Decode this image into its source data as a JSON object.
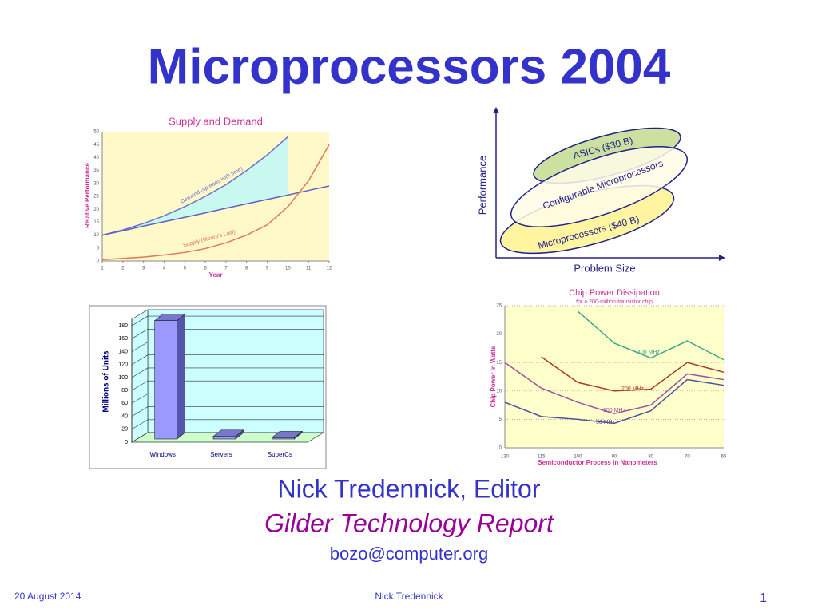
{
  "title": "Microprocessors 2004",
  "chart_data": [
    {
      "type": "line",
      "title": "Supply and Demand",
      "x_label": "Year",
      "y_label": "Relative Performance",
      "x": [
        1,
        2,
        3,
        4,
        5,
        6,
        7,
        8,
        9,
        10,
        11,
        12
      ],
      "xlim": [
        1,
        12
      ],
      "xticks": [
        1,
        2,
        3,
        4,
        5,
        6,
        7,
        8,
        9,
        10,
        11,
        12
      ],
      "ylim": [
        0,
        50
      ],
      "yticks": [
        0,
        5,
        10,
        15,
        20,
        25,
        30,
        35,
        40,
        45,
        50
      ],
      "series": [
        {
          "name": "Demand (spreads with time)",
          "color": "#7070d0",
          "values": [
            10,
            12,
            14.5,
            17.5,
            21,
            25,
            29.5,
            35,
            41,
            48,
            null,
            null
          ]
        },
        {
          "color": "#6060c8",
          "values": [
            10,
            11.7,
            13.5,
            15.2,
            16.9,
            18.6,
            20.4,
            22.1,
            23.8,
            25.5,
            27.3,
            29
          ]
        },
        {
          "name": "Supply (Moore's Law)",
          "color": "#e07858",
          "values": [
            0.5,
            1,
            1.5,
            2.3,
            3.3,
            4.8,
            7,
            10,
            14,
            21,
            31,
            45
          ]
        }
      ]
    },
    {
      "type": "bar3d",
      "y_label": "Millions of Units",
      "categories": [
        "Windows",
        "Servers",
        "SuperCs"
      ],
      "values": [
        183,
        4,
        2
      ],
      "color": "#9999ff",
      "ylim": [
        0,
        190
      ],
      "yticks": [
        0,
        20,
        40,
        60,
        80,
        100,
        120,
        140,
        160,
        180
      ],
      "grid": true
    },
    {
      "type": "line",
      "title": "Chip Power Dissipation",
      "subtitle": "for a 200-million-transistor chip",
      "x_label": "Semiconductor Process in Nanometers",
      "y_label": "Chip Power in Watts",
      "categories": [
        "130",
        "115",
        "100",
        "90",
        "80",
        "70",
        "65"
      ],
      "ylim": [
        0,
        25
      ],
      "yticks": [
        0,
        5,
        10,
        15,
        20,
        25
      ],
      "grid": true,
      "series": [
        {
          "name": "400 MHz",
          "color": "#40a890",
          "values": [
            null,
            null,
            24,
            18.4,
            15.8,
            18.8,
            15.5
          ]
        },
        {
          "name": "200 MHz",
          "color": "#b03828",
          "values": [
            null,
            16,
            11.5,
            10,
            10.3,
            15,
            13.3
          ]
        },
        {
          "name": "100 MHz",
          "color": "#a050a0",
          "values": [
            15,
            10.5,
            8,
            6,
            7.5,
            13,
            12
          ]
        },
        {
          "name": "50 MHz",
          "color": "#5050a0",
          "values": [
            8,
            5.5,
            5,
            4.3,
            6.5,
            12,
            11
          ]
        }
      ]
    }
  ],
  "diagram": {
    "x_label": "Problem Size",
    "y_label": "Performance",
    "regions": [
      {
        "label": "ASICs ($30 B)"
      },
      {
        "label": "Microprocessors ($40 B)"
      },
      {
        "label": "Configurable Microprocessors"
      }
    ]
  },
  "author": "Nick Tredennick, Editor",
  "publication": "Gilder Technology Report",
  "email": "bozo@computer.org",
  "footer": {
    "date": "20 August 2014",
    "presenter": "Nick Tredennick",
    "page": 1
  }
}
